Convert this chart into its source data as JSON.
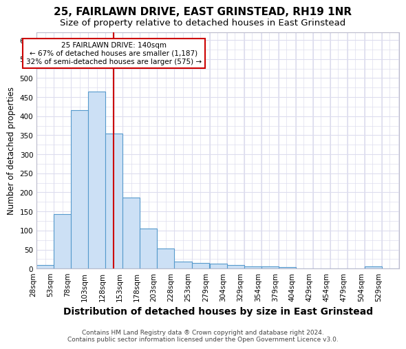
{
  "title1": "25, FAIRLAWN DRIVE, EAST GRINSTEAD, RH19 1NR",
  "title2": "Size of property relative to detached houses in East Grinstead",
  "xlabel": "Distribution of detached houses by size in East Grinstead",
  "ylabel": "Number of detached properties",
  "footnote1": "Contains HM Land Registry data ® Crown copyright and database right 2024.",
  "footnote2": "Contains public sector information licensed under the Open Government Licence v3.0.",
  "annotation_line1": "25 FAIRLAWN DRIVE: 140sqm",
  "annotation_line2": "← 67% of detached houses are smaller (1,187)",
  "annotation_line3": "32% of semi-detached houses are larger (575) →",
  "bar_left_edges": [
    28,
    53,
    78,
    103,
    128,
    153,
    178,
    203,
    228,
    253,
    279,
    304,
    329,
    354,
    379,
    404,
    429,
    454,
    479,
    504,
    529
  ],
  "bar_heights": [
    10,
    143,
    415,
    465,
    355,
    187,
    105,
    53,
    18,
    14,
    13,
    10,
    5,
    5,
    4,
    0,
    0,
    0,
    0,
    5,
    0
  ],
  "bin_width": 25,
  "bar_color": "#cce0f5",
  "bar_edge_color": "#5599cc",
  "vline_x": 140,
  "vline_color": "#cc0000",
  "ylim": [
    0,
    620
  ],
  "yticks": [
    0,
    50,
    100,
    150,
    200,
    250,
    300,
    350,
    400,
    450,
    500,
    550,
    600
  ],
  "xtick_labels": [
    "28sqm",
    "53sqm",
    "78sqm",
    "103sqm",
    "128sqm",
    "153sqm",
    "178sqm",
    "203sqm",
    "228sqm",
    "253sqm",
    "279sqm",
    "304sqm",
    "329sqm",
    "354sqm",
    "379sqm",
    "404sqm",
    "429sqm",
    "454sqm",
    "479sqm",
    "504sqm",
    "529sqm"
  ],
  "bg_color": "#ffffff",
  "grid_color": "#ddddee",
  "annotation_box_color": "#cc0000",
  "annotation_text_color": "#000000",
  "title1_fontsize": 11,
  "title2_fontsize": 9.5,
  "xlabel_fontsize": 10,
  "ylabel_fontsize": 8.5,
  "footnote_fontsize": 6.5,
  "tick_fontsize": 7.5
}
